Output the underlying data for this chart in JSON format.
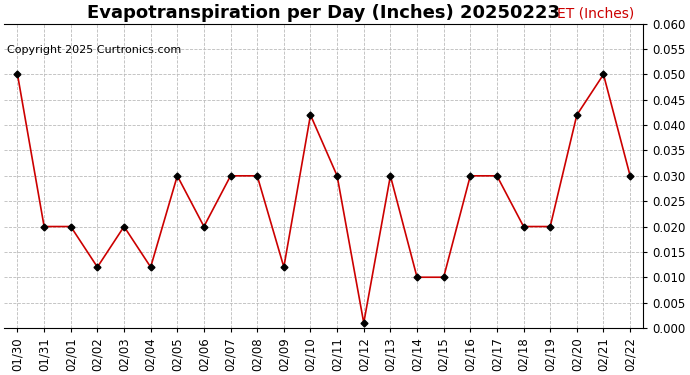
{
  "title": "Evapotranspiration per Day (Inches) 20250223",
  "copyright": "Copyright 2025 Curtronics.com",
  "legend_label": "ET (Inches)",
  "dates": [
    "01/30",
    "01/31",
    "02/01",
    "02/02",
    "02/03",
    "02/04",
    "02/05",
    "02/06",
    "02/07",
    "02/08",
    "02/09",
    "02/10",
    "02/11",
    "02/12",
    "02/13",
    "02/14",
    "02/15",
    "02/16",
    "02/17",
    "02/18",
    "02/19",
    "02/20",
    "02/21",
    "02/22"
  ],
  "values": [
    0.05,
    0.02,
    0.02,
    0.012,
    0.02,
    0.012,
    0.03,
    0.02,
    0.03,
    0.03,
    0.012,
    0.042,
    0.03,
    0.001,
    0.03,
    0.01,
    0.01,
    0.03,
    0.03,
    0.02,
    0.02,
    0.042,
    0.05,
    0.03
  ],
  "line_color": "#cc0000",
  "marker_color": "#000000",
  "grid_color": "#bbbbbb",
  "background_color": "#ffffff",
  "ylim": [
    0.0,
    0.06
  ],
  "ytick_step": 0.005,
  "title_fontsize": 13,
  "legend_fontsize": 10,
  "copyright_fontsize": 8,
  "tick_labelsize": 8.5
}
